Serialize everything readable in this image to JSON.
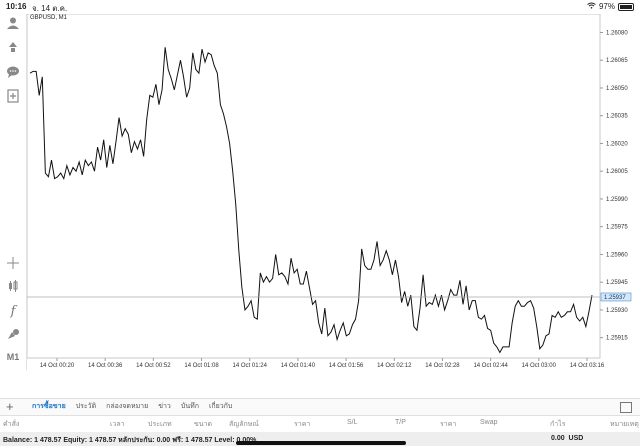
{
  "status_bar": {
    "time": "10:16",
    "date": "จ. 14 ต.ค.",
    "battery": "97%"
  },
  "chart": {
    "symbol": "GBPUSD, M1",
    "current_price": "1.25937"
  },
  "left_toolbar": [
    {
      "name": "account-icon",
      "glyph": "👤"
    },
    {
      "name": "trade-icon",
      "glyph": "⇅"
    },
    {
      "name": "chat-icon",
      "glyph": "💬"
    },
    {
      "name": "new-order-icon",
      "glyph": "＋"
    },
    {
      "name": "crosshair-icon",
      "glyph": "✛"
    },
    {
      "name": "chart-type-icon",
      "glyph": "⧉"
    },
    {
      "name": "indicators-icon",
      "glyph": "𝑓"
    },
    {
      "name": "objects-icon",
      "glyph": "◆"
    }
  ],
  "timeframe": "M1",
  "bottom": {
    "tabs": [
      "การซื้อขาย",
      "ประวัติ",
      "กล่องจดหมาย",
      "ข่าว",
      "บันทึก",
      "เกี่ยวกับ"
    ],
    "active_tab": 0,
    "columns": [
      "คำสั่ง",
      "เวลา",
      "ประเภท",
      "ขนาด",
      "สัญลักษณ์",
      "ราคา",
      "S/L",
      "T/P",
      "ราคา",
      "Swap",
      "กำไร",
      "หมายเหตุ"
    ],
    "balance_text": "Balance: 1 478.57 Equity: 1 478.57 หลักประกัน: 0.00 ฟรี: 1 478.57 Level: 0.00%",
    "profit": "0.00",
    "currency": "USD"
  },
  "chart_data": {
    "type": "line",
    "symbol": "GBPUSD",
    "timeframe": "M1",
    "y_ticks": [
      "1.26080",
      "1.26065",
      "1.26050",
      "1.26035",
      "1.26020",
      "1.26005",
      "1.25990",
      "1.25975",
      "1.25960",
      "1.25945",
      "1.25930",
      "1.25915"
    ],
    "ylim": [
      1.25904,
      1.2609
    ],
    "x_ticks": [
      "14 Oct 00:20",
      "14 Oct 00:36",
      "14 Oct 00:52",
      "14 Oct 01:08",
      "14 Oct 01:24",
      "14 Oct 01:40",
      "14 Oct 01:56",
      "14 Oct 02:12",
      "14 Oct 02:28",
      "14 Oct 02:44",
      "14 Oct 03:00",
      "14 Oct 03:16"
    ],
    "current_price": 1.25937,
    "grid": false,
    "values": [
      1.26058,
      1.26059,
      1.26059,
      1.26046,
      1.26056,
      1.26004,
      1.26002,
      1.26011,
      1.26001,
      1.26002,
      1.26004,
      1.26001,
      1.26008,
      1.26003,
      1.26007,
      1.26005,
      1.2601,
      1.26003,
      1.26011,
      1.26008,
      1.2601,
      1.26005,
      1.26018,
      1.26011,
      1.26022,
      1.26007,
      1.26019,
      1.26009,
      1.26021,
      1.26034,
      1.26024,
      1.26028,
      1.26025,
      1.26015,
      1.26021,
      1.26017,
      1.26022,
      1.26013,
      1.26033,
      1.26046,
      1.26045,
      1.26052,
      1.26041,
      1.26049,
      1.26072,
      1.2606,
      1.26055,
      1.26049,
      1.26057,
      1.26065,
      1.26056,
      1.26045,
      1.2605,
      1.26069,
      1.2606,
      1.26058,
      1.26071,
      1.26064,
      1.26069,
      1.26068,
      1.26062,
      1.26058,
      1.26041,
      1.26036,
      1.26029,
      1.2602,
      1.26005,
      1.25987,
      1.25962,
      1.25942,
      1.2593,
      1.25932,
      1.25935,
      1.25926,
      1.25925,
      1.2595,
      1.25945,
      1.25948,
      1.25945,
      1.25947,
      1.2596,
      1.25949,
      1.2595,
      1.25948,
      1.25944,
      1.25958,
      1.2595,
      1.25952,
      1.25944,
      1.25944,
      1.25951,
      1.25942,
      1.25933,
      1.25935,
      1.25923,
      1.25917,
      1.25931,
      1.25916,
      1.25918,
      1.25922,
      1.25914,
      1.25919,
      1.25923,
      1.25916,
      1.25917,
      1.25922,
      1.25925,
      1.25935,
      1.25963,
      1.25954,
      1.25952,
      1.25952,
      1.25957,
      1.25967,
      1.25954,
      1.25957,
      1.25962,
      1.25957,
      1.25949,
      1.25957,
      1.25948,
      1.25934,
      1.2594,
      1.25932,
      1.25938,
      1.25921,
      1.25919,
      1.25931,
      1.25949,
      1.25932,
      1.25934,
      1.25933,
      1.25938,
      1.25932,
      1.25938,
      1.2593,
      1.25935,
      1.25941,
      1.25938,
      1.25938,
      1.25946,
      1.25933,
      1.25943,
      1.2593,
      1.25935,
      1.25935,
      1.25926,
      1.25925,
      1.25927,
      1.2592,
      1.25919,
      1.25912,
      1.2591,
      1.25907,
      1.2591,
      1.2591,
      1.2591,
      1.25923,
      1.25932,
      1.25935,
      1.25932,
      1.25932,
      1.25934,
      1.25935,
      1.25931,
      1.25921,
      1.25909,
      1.25911,
      1.25916,
      1.25917,
      1.25927,
      1.25926,
      1.25929,
      1.25926,
      1.25927,
      1.25929,
      1.25929,
      1.25933,
      1.25926,
      1.25924,
      1.25926,
      1.25921,
      1.25929,
      1.25938
    ]
  }
}
